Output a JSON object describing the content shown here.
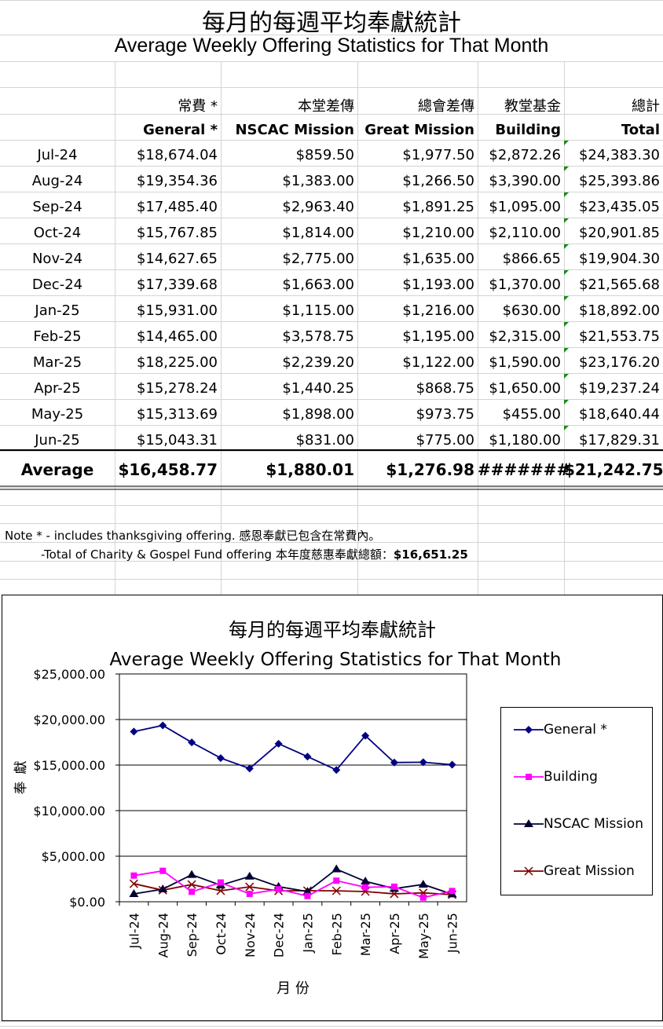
{
  "sheet": {
    "title_zh": "每月的每週平均奉獻統計",
    "title_en": "Average Weekly Offering Statistics for That Month",
    "headers_zh": [
      "常費 *",
      "本堂差傳",
      "總會差傳",
      "教堂基金",
      "總計"
    ],
    "headers_en": [
      "General *",
      "NSCAC Mission",
      "Great Mission",
      "Building",
      "Total"
    ],
    "rows": [
      {
        "month": "Jul-24",
        "general": "$18,674.04",
        "nscac": "$859.50",
        "great": "$1,977.50",
        "building": "$2,872.26",
        "total": "$24,383.30"
      },
      {
        "month": "Aug-24",
        "general": "$19,354.36",
        "nscac": "$1,383.00",
        "great": "$1,266.50",
        "building": "$3,390.00",
        "total": "$25,393.86"
      },
      {
        "month": "Sep-24",
        "general": "$17,485.40",
        "nscac": "$2,963.40",
        "great": "$1,891.25",
        "building": "$1,095.00",
        "total": "$23,435.05"
      },
      {
        "month": "Oct-24",
        "general": "$15,767.85",
        "nscac": "$1,814.00",
        "great": "$1,210.00",
        "building": "$2,110.00",
        "total": "$20,901.85"
      },
      {
        "month": "Nov-24",
        "general": "$14,627.65",
        "nscac": "$2,775.00",
        "great": "$1,635.00",
        "building": "$866.65",
        "total": "$19,904.30"
      },
      {
        "month": "Dec-24",
        "general": "$17,339.68",
        "nscac": "$1,663.00",
        "great": "$1,193.00",
        "building": "$1,370.00",
        "total": "$21,565.68"
      },
      {
        "month": "Jan-25",
        "general": "$15,931.00",
        "nscac": "$1,115.00",
        "great": "$1,216.00",
        "building": "$630.00",
        "total": "$18,892.00"
      },
      {
        "month": "Feb-25",
        "general": "$14,465.00",
        "nscac": "$3,578.75",
        "great": "$1,195.00",
        "building": "$2,315.00",
        "total": "$21,553.75"
      },
      {
        "month": "Mar-25",
        "general": "$18,225.00",
        "nscac": "$2,239.20",
        "great": "$1,122.00",
        "building": "$1,590.00",
        "total": "$23,176.20"
      },
      {
        "month": "Apr-25",
        "general": "$15,278.24",
        "nscac": "$1,440.25",
        "great": "$868.75",
        "building": "$1,650.00",
        "total": "$19,237.24"
      },
      {
        "month": "May-25",
        "general": "$15,313.69",
        "nscac": "$1,898.00",
        "great": "$973.75",
        "building": "$455.00",
        "total": "$18,640.44"
      },
      {
        "month": "Jun-25",
        "general": "$15,043.31",
        "nscac": "$831.00",
        "great": "$775.00",
        "building": "$1,180.00",
        "total": "$17,829.31"
      }
    ],
    "average": {
      "label": "Average",
      "general": "$16,458.77",
      "nscac": "$1,880.01",
      "great": "$1,276.98",
      "building": "#######",
      "total": "$21,242.75"
    },
    "note1": "Note * - includes thanksgiving offering. 感恩奉獻已包含在常費內。",
    "note2_prefix": "-Total of Charity & Gospel Fund offering 本年度慈惠奉獻總額：",
    "note2_value": "$16,651.25",
    "comment_marker_color": "#1a8a1a"
  },
  "chart_data": {
    "type": "line",
    "title": "每月的每週平均奉獻統計",
    "subtitle": "Average Weekly Offering Statistics for That Month",
    "xlabel": "月 份",
    "ylabel": "奉 獻",
    "ylim": [
      0,
      25000
    ],
    "y_ticks": [
      "$0.00",
      "$5,000.00",
      "$10,000.00",
      "$15,000.00",
      "$20,000.00",
      "$25,000.00"
    ],
    "grid": "horizontal",
    "legend_position": "right",
    "categories": [
      "Jul-24",
      "Aug-24",
      "Sep-24",
      "Oct-24",
      "Nov-24",
      "Dec-24",
      "Jan-25",
      "Feb-25",
      "Mar-25",
      "Apr-25",
      "May-25",
      "Jun-25"
    ],
    "series": [
      {
        "name": "General *",
        "color": "#000080",
        "marker": "diamond",
        "values": [
          18674.04,
          19354.36,
          17485.4,
          15767.85,
          14627.65,
          17339.68,
          15931.0,
          14465.0,
          18225.0,
          15278.24,
          15313.69,
          15043.31
        ]
      },
      {
        "name": "Building",
        "color": "#ff00ff",
        "marker": "square",
        "values": [
          2872.26,
          3390.0,
          1095.0,
          2110.0,
          866.65,
          1370.0,
          630.0,
          2315.0,
          1590.0,
          1650.0,
          455.0,
          1180.0
        ]
      },
      {
        "name": "NSCAC Mission",
        "color": "#000033",
        "marker": "triangle",
        "values": [
          859.5,
          1383.0,
          2963.4,
          1814.0,
          2775.0,
          1663.0,
          1115.0,
          3578.75,
          2239.2,
          1440.25,
          1898.0,
          831.0
        ]
      },
      {
        "name": "Great Mission",
        "color": "#800000",
        "marker": "x",
        "values": [
          1977.5,
          1266.5,
          1891.25,
          1210.0,
          1635.0,
          1193.0,
          1216.0,
          1195.0,
          1122.0,
          868.75,
          973.75,
          775.0
        ]
      }
    ]
  }
}
